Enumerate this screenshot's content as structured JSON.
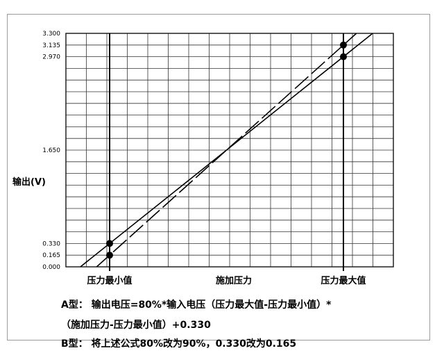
{
  "chart_data": {
    "type": "line",
    "title": "",
    "ylabel": "输出(V)",
    "xlabel": "",
    "x_tick_labels": [
      "压力最小值",
      "施加压力",
      "压力最大值"
    ],
    "y_ticks": [
      0.0,
      0.165,
      0.33,
      1.65,
      2.97,
      3.135,
      3.3
    ],
    "y_tick_labels": [
      "0.000",
      "0.165",
      "0.330",
      "1.650",
      "2.970",
      "3.135",
      "3.300"
    ],
    "ylim": [
      0,
      3.3
    ],
    "xlim": [
      0,
      1
    ],
    "grid": true,
    "series": [
      {
        "style": "solid",
        "x": [
          0,
          1
        ],
        "y": [
          0.33,
          2.97
        ]
      },
      {
        "style": "dashed",
        "x": [
          0,
          1
        ],
        "y": [
          0.165,
          3.135
        ]
      }
    ],
    "points": [
      {
        "x": 0,
        "y": 0.33
      },
      {
        "x": 0,
        "y": 0.165
      },
      {
        "x": 1,
        "y": 3.135
      },
      {
        "x": 1,
        "y": 2.97
      }
    ]
  },
  "notes": {
    "a_type_line1": "A型： 输出电压=80%*输入电压（压力最大值-压力最小值）*",
    "a_type_line2": "（施加压力-压力最小值）+0.330",
    "b_type": "B型： 将上述公式80%改为90%，0.330改为0.165"
  }
}
